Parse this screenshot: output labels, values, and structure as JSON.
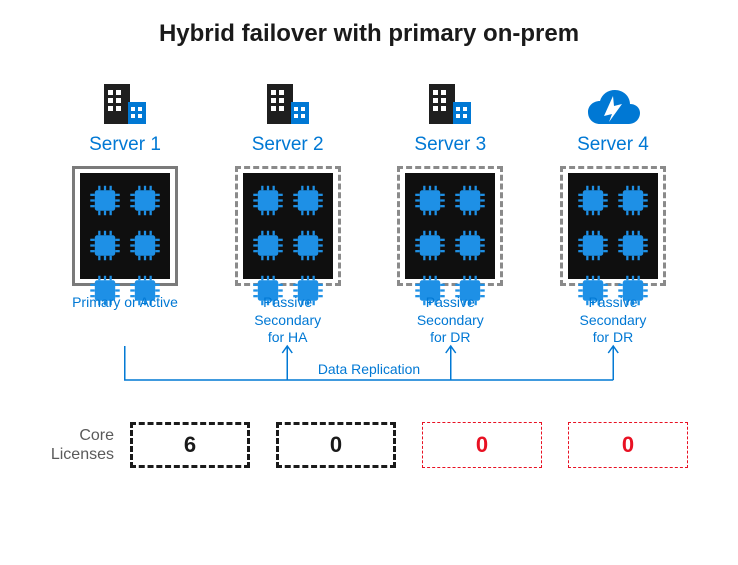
{
  "title": "Hybrid failover with primary on-prem",
  "title_fontsize": 24,
  "colors": {
    "azure_blue": "#0078d4",
    "dark_building": "#1f1f1f",
    "chip_box_bg": "#0f0f0f",
    "chip_blue": "#1e90e6",
    "solid_border": "#7a7a7a",
    "dashed_border": "#8a8a8a",
    "role_text": "#0078d4",
    "title_text": "#1a1a1a",
    "lic_black": "#1a1a1a",
    "lic_red": "#e81123",
    "lic_label": "#5a5a5a",
    "arrow": "#0078d4"
  },
  "servers": [
    {
      "name": "Server 1",
      "icon": "building",
      "role": "Primary or Active",
      "border_style": "solid",
      "border_color": "#7a7a7a",
      "border_width": 3
    },
    {
      "name": "Server 2",
      "icon": "building",
      "role": "Passive\nSecondary\nfor HA",
      "border_style": "dashed",
      "border_color": "#8a8a8a",
      "border_width": 3
    },
    {
      "name": "Server 3",
      "icon": "building",
      "role": "Passive\nSecondary\nfor DR",
      "border_style": "dashed",
      "border_color": "#8a8a8a",
      "border_width": 3
    },
    {
      "name": "Server 4",
      "icon": "cloud",
      "role": "Passive\nSecondary\nfor DR",
      "border_style": "dashed",
      "border_color": "#8a8a8a",
      "border_width": 3
    }
  ],
  "server_name_fontsize": 19,
  "role_fontsize": 14,
  "chips_per_box": 6,
  "replication": {
    "label": "Data Replication",
    "fontsize": 14,
    "color": "#0078d4"
  },
  "licenses": {
    "label": "Core\nLicenses",
    "label_fontsize": 16,
    "boxes": [
      {
        "value": "6",
        "border_color": "#1a1a1a",
        "border_width": 3,
        "text_color": "#1a1a1a"
      },
      {
        "value": "0",
        "border_color": "#1a1a1a",
        "border_width": 3,
        "text_color": "#1a1a1a"
      },
      {
        "value": "0",
        "border_color": "#e81123",
        "border_width": 1.5,
        "text_color": "#e81123"
      },
      {
        "value": "0",
        "border_color": "#e81123",
        "border_width": 1.5,
        "text_color": "#e81123"
      }
    ],
    "value_fontsize": 22
  }
}
